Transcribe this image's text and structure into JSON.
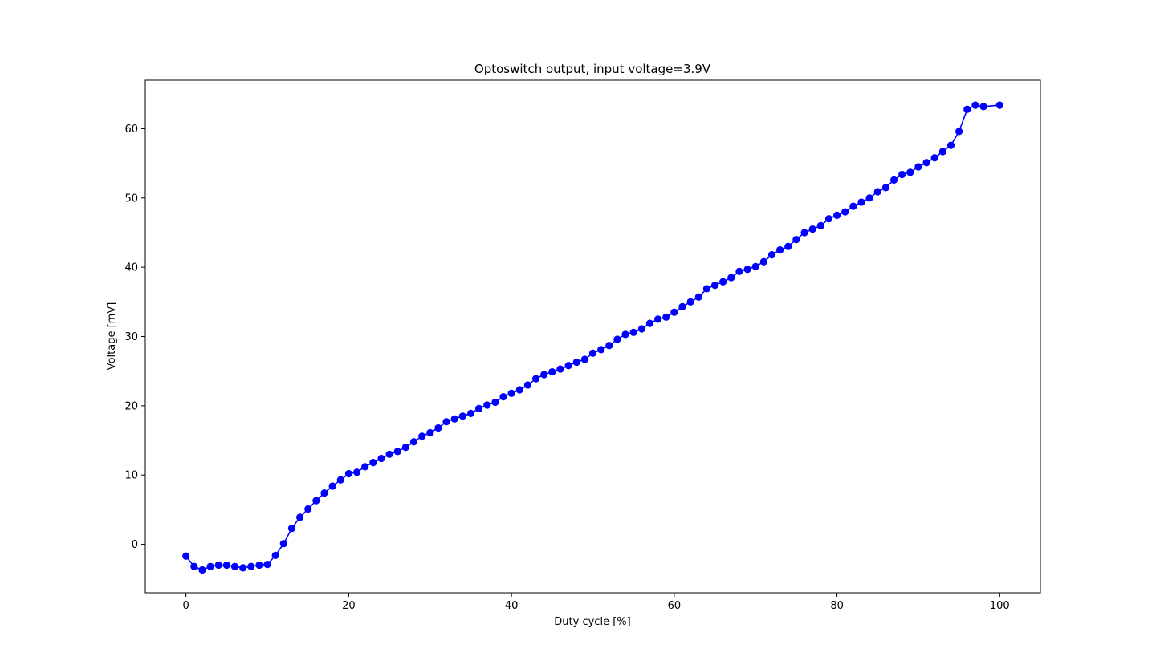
{
  "chart_data": {
    "type": "line",
    "title": "Optoswitch output, input voltage=3.9V",
    "xlabel": "Duty cycle [%]",
    "ylabel": "Voltage [mV]",
    "xlim": [
      -5,
      105
    ],
    "ylim": [
      -7,
      67
    ],
    "xticks": [
      0,
      20,
      40,
      60,
      80,
      100
    ],
    "yticks": [
      0,
      10,
      20,
      30,
      40,
      50,
      60
    ],
    "grid": false,
    "legend": "none",
    "series": [
      {
        "color": "#0000ff",
        "marker": "circle",
        "x": [
          0,
          1,
          2,
          3,
          4,
          5,
          6,
          7,
          8,
          9,
          10,
          11,
          12,
          13,
          14,
          15,
          16,
          17,
          18,
          19,
          20,
          21,
          22,
          23,
          24,
          25,
          26,
          27,
          28,
          29,
          30,
          31,
          32,
          33,
          34,
          35,
          36,
          37,
          38,
          39,
          40,
          41,
          42,
          43,
          44,
          45,
          46,
          47,
          48,
          49,
          50,
          51,
          52,
          53,
          54,
          55,
          56,
          57,
          58,
          59,
          60,
          61,
          62,
          63,
          64,
          65,
          66,
          67,
          68,
          69,
          70,
          71,
          72,
          73,
          74,
          75,
          76,
          77,
          78,
          79,
          80,
          81,
          82,
          83,
          84,
          85,
          86,
          87,
          88,
          89,
          90,
          91,
          92,
          93,
          94,
          95,
          96,
          97,
          98,
          100
        ],
        "y": [
          -1.7,
          -3.2,
          -3.7,
          -3.2,
          -3.0,
          -3.0,
          -3.2,
          -3.4,
          -3.2,
          -3.0,
          -2.9,
          -1.6,
          0.1,
          2.3,
          3.9,
          5.1,
          6.3,
          7.4,
          8.4,
          9.3,
          10.2,
          10.4,
          11.2,
          11.8,
          12.4,
          13.0,
          13.4,
          14.0,
          14.8,
          15.6,
          16.1,
          16.8,
          17.7,
          18.1,
          18.5,
          18.9,
          19.6,
          20.1,
          20.5,
          21.3,
          21.8,
          22.3,
          23.0,
          23.9,
          24.5,
          24.9,
          25.3,
          25.8,
          26.3,
          26.7,
          27.6,
          28.1,
          28.7,
          29.6,
          30.3,
          30.6,
          31.1,
          31.9,
          32.5,
          32.8,
          33.5,
          34.3,
          35.0,
          35.7,
          36.9,
          37.4,
          37.9,
          38.5,
          39.4,
          39.7,
          40.1,
          40.8,
          41.8,
          42.5,
          43.0,
          44.0,
          45.0,
          45.5,
          46.0,
          47.0,
          47.5,
          48.0,
          48.8,
          49.4,
          50.0,
          50.9,
          51.5,
          52.6,
          53.4,
          53.7,
          54.5,
          55.1,
          55.8,
          56.7,
          57.6,
          59.6,
          62.8,
          63.4,
          63.2,
          63.4
        ]
      }
    ]
  }
}
